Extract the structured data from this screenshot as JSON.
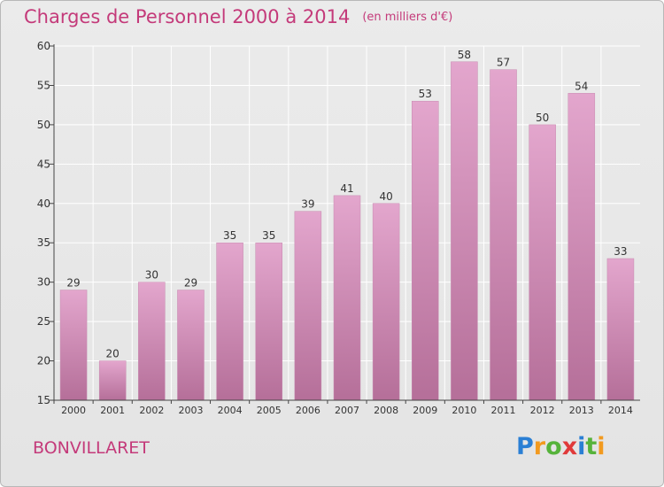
{
  "chart_data": {
    "type": "bar",
    "title": "Charges de Personnel 2000 à 2014",
    "subtitle": "(en milliers d'€)",
    "categories": [
      "2000",
      "2001",
      "2002",
      "2003",
      "2004",
      "2005",
      "2006",
      "2007",
      "2008",
      "2009",
      "2010",
      "2011",
      "2012",
      "2013",
      "2014"
    ],
    "values": [
      29,
      20,
      30,
      29,
      35,
      35,
      39,
      41,
      40,
      53,
      58,
      57,
      50,
      54,
      33
    ],
    "ylim": [
      15,
      60
    ],
    "yticks": [
      15,
      20,
      25,
      30,
      35,
      40,
      45,
      50,
      55,
      60
    ],
    "grid": true,
    "bar_color_top": "#e3a6cd",
    "bar_color_bottom": "#b56f99"
  },
  "place": "BONVILLARET",
  "logo": {
    "text": "Proxiti",
    "letters": [
      {
        "ch": "P",
        "color": "#2a7fd4"
      },
      {
        "ch": "r",
        "color": "#f29a1f"
      },
      {
        "ch": "o",
        "color": "#56b33b"
      },
      {
        "ch": "x",
        "color": "#e03a3a"
      },
      {
        "ch": "i",
        "color": "#2a7fd4"
      },
      {
        "ch": "t",
        "color": "#56b33b"
      },
      {
        "ch": "i",
        "color": "#f29a1f"
      }
    ]
  },
  "colors": {
    "accent": "#c43a7a",
    "axis": "#444444",
    "grid": "#ffffff"
  }
}
